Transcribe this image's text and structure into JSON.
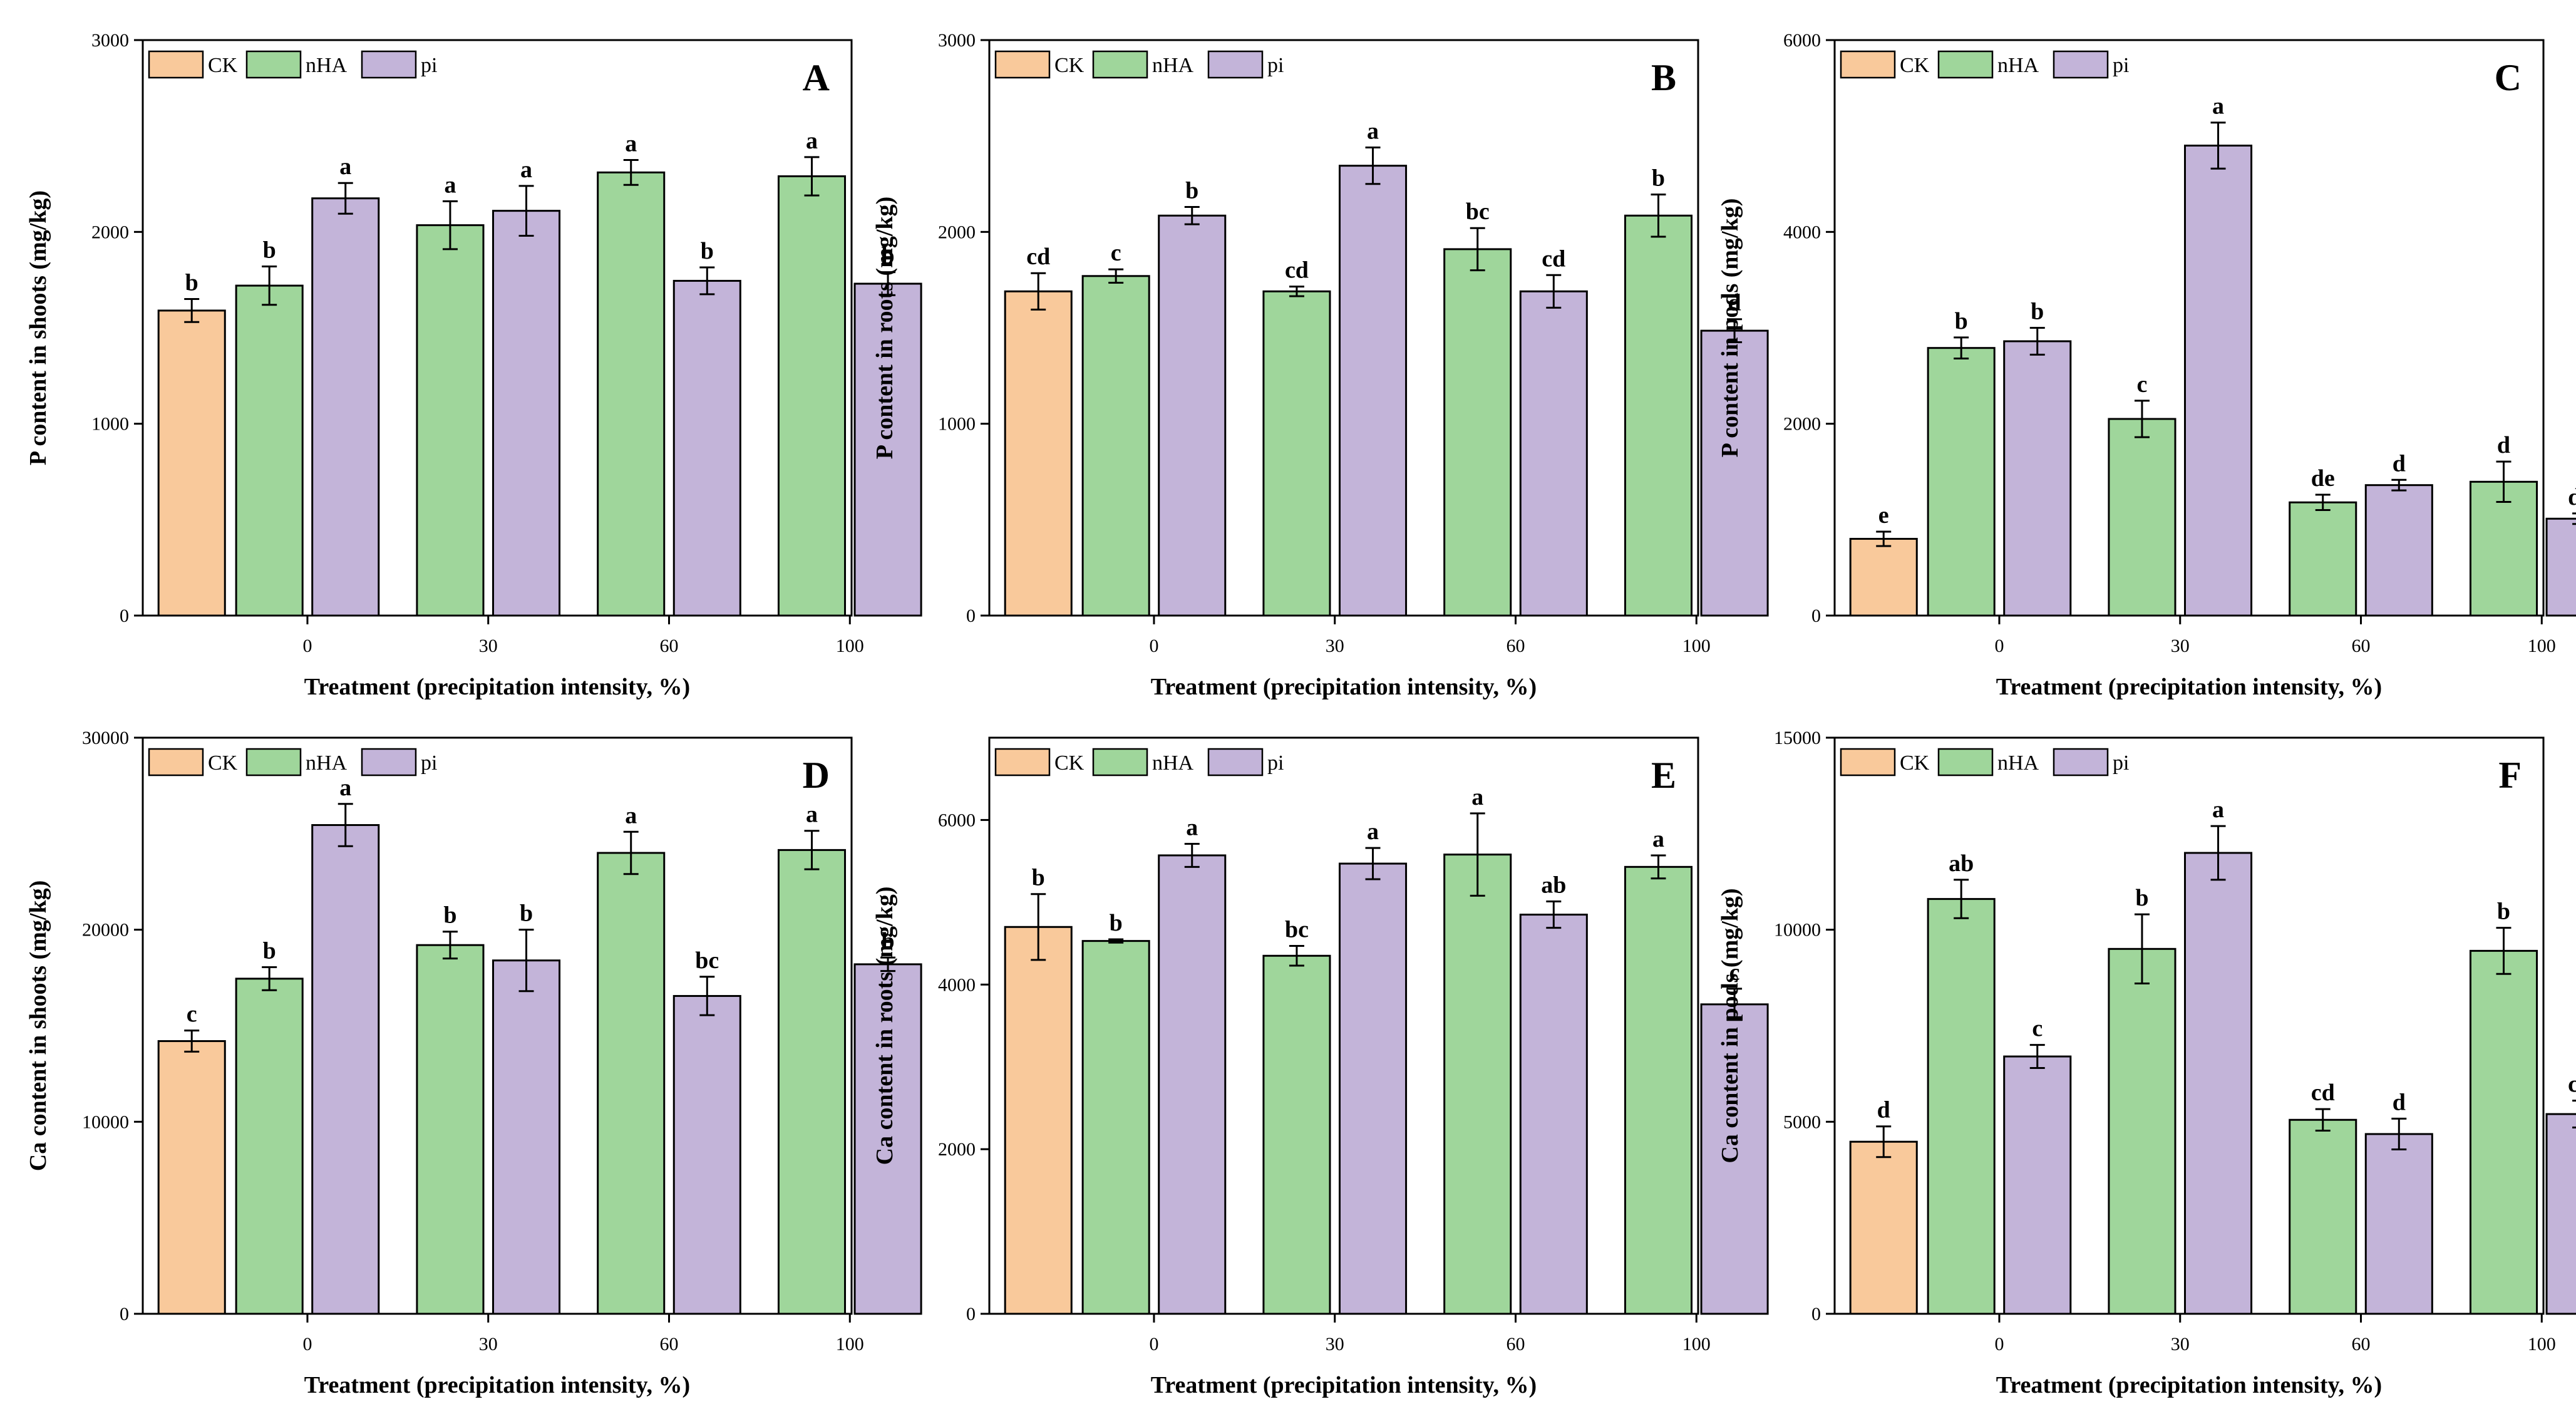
{
  "legend": [
    {
      "name": "CK",
      "color": "#f9c99b"
    },
    {
      "name": "nHA",
      "color": "#9fd69b"
    },
    {
      "name": "pi",
      "color": "#c3b4d9"
    }
  ],
  "chart_data": [
    {
      "type": "bar",
      "panel": "A",
      "ylabel": "P content in shoots (mg/kg)",
      "xlabel": "Treatment (precipitation intensity, %)",
      "categories": [
        "0",
        "30",
        "60",
        "100"
      ],
      "ylim": [
        0,
        3000
      ],
      "yticks": [
        0,
        1000,
        2000,
        3000
      ],
      "yticklabels": [
        "0",
        "1000",
        "2000",
        "3000"
      ],
      "ck": {
        "value": 1590,
        "error": 60,
        "letter": "b"
      },
      "series": [
        {
          "name": "nHA",
          "values": [
            1720,
            2035,
            2310,
            2290
          ],
          "errors": [
            100,
            125,
            65,
            100
          ],
          "letters": [
            "b",
            "a",
            "a",
            "a"
          ]
        },
        {
          "name": "pi",
          "values": [
            2175,
            2110,
            1745,
            1730
          ],
          "errors": [
            80,
            130,
            70,
            60
          ],
          "letters": [
            "a",
            "a",
            "b",
            "b"
          ]
        }
      ]
    },
    {
      "type": "bar",
      "panel": "B",
      "ylabel": "P content in roots (mg/kg)",
      "xlabel": "Treatment (precipitation intensity, %)",
      "categories": [
        "0",
        "30",
        "60",
        "100"
      ],
      "ylim": [
        0,
        3000
      ],
      "yticks": [
        0,
        1000,
        2000,
        3000
      ],
      "yticklabels": [
        "0",
        "1000",
        "2000",
        "3000"
      ],
      "ck": {
        "value": 1690,
        "error": 95,
        "letter": "cd"
      },
      "series": [
        {
          "name": "nHA",
          "values": [
            1770,
            1690,
            1910,
            2085
          ],
          "errors": [
            35,
            25,
            110,
            110
          ],
          "letters": [
            "c",
            "cd",
            "bc",
            "b"
          ]
        },
        {
          "name": "pi",
          "values": [
            2085,
            2345,
            1690,
            1485
          ],
          "errors": [
            45,
            95,
            85,
            60
          ],
          "letters": [
            "b",
            "a",
            "cd",
            "d"
          ]
        }
      ]
    },
    {
      "type": "bar",
      "panel": "C",
      "ylabel": "P content in pods (mg/kg)",
      "xlabel": "Treatment (precipitation intensity, %)",
      "categories": [
        "0",
        "30",
        "60",
        "100"
      ],
      "ylim": [
        0,
        6000
      ],
      "yticks": [
        0,
        2000,
        4000,
        6000
      ],
      "yticklabels": [
        "0",
        "2000",
        "4000",
        "6000"
      ],
      "ck": {
        "value": 800,
        "error": 75,
        "letter": "e"
      },
      "series": [
        {
          "name": "nHA",
          "values": [
            2790,
            2050,
            1180,
            1395
          ],
          "errors": [
            110,
            190,
            80,
            210
          ],
          "letters": [
            "b",
            "c",
            "de",
            "d"
          ]
        },
        {
          "name": "pi",
          "values": [
            2860,
            4900,
            1360,
            1010
          ],
          "errors": [
            140,
            240,
            55,
            55
          ],
          "letters": [
            "b",
            "a",
            "d",
            "de"
          ]
        }
      ]
    },
    {
      "type": "bar",
      "panel": "D",
      "ylabel": "Ca content in shoots (mg/kg)",
      "xlabel": "Treatment (precipitation intensity, %)",
      "categories": [
        "0",
        "30",
        "60",
        "100"
      ],
      "ylim": [
        0,
        30000
      ],
      "yticks": [
        0,
        10000,
        20000,
        30000
      ],
      "yticklabels": [
        "0",
        "10000",
        "20000",
        "30000"
      ],
      "ck": {
        "value": 14200,
        "error": 550,
        "letter": "c"
      },
      "series": [
        {
          "name": "nHA",
          "values": [
            17450,
            19200,
            24000,
            24150
          ],
          "errors": [
            600,
            700,
            1100,
            1000
          ],
          "letters": [
            "b",
            "b",
            "a",
            "a"
          ]
        },
        {
          "name": "pi",
          "values": [
            25450,
            18400,
            16550,
            18200
          ],
          "errors": [
            1100,
            1600,
            1000,
            350
          ],
          "letters": [
            "a",
            "b",
            "bc",
            "b"
          ]
        }
      ]
    },
    {
      "type": "bar",
      "panel": "E",
      "ylabel": "Ca content in roots (mg/kg)",
      "xlabel": "Treatment (precipitation intensity, %)",
      "categories": [
        "0",
        "30",
        "60",
        "100"
      ],
      "ylim": [
        0,
        7000
      ],
      "yticks": [
        0,
        2000,
        4000,
        6000
      ],
      "yticklabels": [
        "0",
        "2000",
        "4000",
        "6000"
      ],
      "ck": {
        "value": 4700,
        "error": 400,
        "letter": "b"
      },
      "series": [
        {
          "name": "nHA",
          "values": [
            4530,
            4350,
            5580,
            5430
          ],
          "errors": [
            20,
            120,
            500,
            140
          ],
          "letters": [
            "b",
            "bc",
            "a",
            "a"
          ]
        },
        {
          "name": "pi",
          "values": [
            5570,
            5470,
            4850,
            3760
          ],
          "errors": [
            140,
            190,
            160,
            190
          ],
          "letters": [
            "a",
            "a",
            "ab",
            "c"
          ]
        }
      ]
    },
    {
      "type": "bar",
      "panel": "F",
      "ylabel": "Ca content in pods (mg/kg)",
      "xlabel": "Treatment (precipitation intensity, %)",
      "categories": [
        "0",
        "30",
        "60",
        "100"
      ],
      "ylim": [
        0,
        15000
      ],
      "yticks": [
        0,
        5000,
        10000,
        15000
      ],
      "yticklabels": [
        "0",
        "5000",
        "10000",
        "15000"
      ],
      "ck": {
        "value": 4480,
        "error": 400,
        "letter": "d"
      },
      "series": [
        {
          "name": "nHA",
          "values": [
            10800,
            9500,
            5050,
            9450
          ],
          "errors": [
            500,
            900,
            280,
            600
          ],
          "letters": [
            "ab",
            "b",
            "cd",
            "b"
          ]
        },
        {
          "name": "pi",
          "values": [
            6700,
            12000,
            4680,
            5200
          ],
          "errors": [
            300,
            700,
            400,
            350
          ],
          "letters": [
            "c",
            "a",
            "d",
            "cd"
          ]
        }
      ]
    }
  ]
}
